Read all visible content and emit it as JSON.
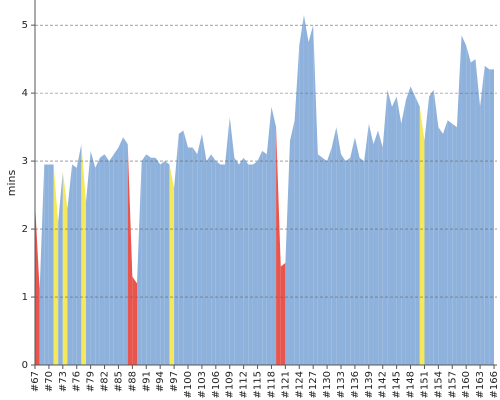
{
  "chart_data": {
    "type": "area",
    "y_label": "mins",
    "ylim": [
      0,
      5.37
    ],
    "yticks": [
      0,
      1,
      2,
      3,
      4,
      5
    ],
    "grid": true,
    "categories": [
      "#67",
      null,
      null,
      "#70",
      null,
      null,
      "#73",
      null,
      null,
      "#76",
      null,
      null,
      "#79",
      null,
      null,
      "#82",
      null,
      null,
      "#85",
      null,
      null,
      "#88",
      null,
      null,
      "#91",
      null,
      null,
      "#94",
      null,
      null,
      "#97",
      null,
      null,
      "#100",
      null,
      null,
      "#103",
      null,
      null,
      "#106",
      null,
      null,
      "#109",
      null,
      null,
      "#112",
      null,
      null,
      "#115",
      null,
      null,
      "#118",
      null,
      null,
      "#121",
      null,
      null,
      "#124",
      null,
      null,
      "#127",
      null,
      null,
      "#130",
      null,
      null,
      "#133",
      null,
      null,
      "#136",
      null,
      null,
      "#139",
      null,
      null,
      "#142",
      null,
      null,
      "#145",
      null,
      null,
      "#148",
      null,
      null,
      "#151",
      null,
      null,
      "#154",
      null,
      null,
      "#157",
      null,
      null,
      "#160",
      null,
      null,
      "#163",
      null,
      null,
      "#166"
    ],
    "values": [
      2.4,
      1.1,
      2.95,
      2.95,
      2.95,
      2.1,
      2.85,
      2.3,
      2.95,
      2.9,
      3.25,
      2.4,
      3.15,
      2.9,
      3.05,
      3.1,
      3.0,
      3.1,
      3.2,
      3.35,
      3.25,
      1.3,
      1.2,
      3.0,
      3.1,
      3.05,
      3.05,
      2.95,
      3.0,
      2.95,
      2.6,
      3.4,
      3.45,
      3.2,
      3.2,
      3.1,
      3.4,
      3.0,
      3.1,
      3.0,
      2.95,
      2.95,
      3.65,
      3.05,
      2.95,
      3.05,
      2.95,
      2.95,
      3.0,
      3.15,
      3.1,
      3.8,
      3.5,
      1.45,
      1.5,
      3.3,
      3.6,
      4.7,
      5.15,
      4.75,
      5.0,
      3.1,
      3.05,
      3.0,
      3.2,
      3.5,
      3.1,
      3.0,
      3.05,
      3.35,
      3.05,
      3.0,
      3.55,
      3.25,
      3.45,
      3.2,
      4.05,
      3.8,
      3.95,
      3.55,
      3.9,
      4.1,
      3.95,
      3.8,
      3.3,
      3.95,
      4.05,
      3.5,
      3.4,
      3.6,
      3.55,
      3.5,
      4.85,
      4.7,
      4.45,
      4.5,
      3.8,
      4.4,
      4.35,
      4.35
    ],
    "point_colors": [
      "#8fb2dc",
      "#e8554e",
      "#8fb2dc",
      "#8fb2dc",
      "#8fb2dc",
      "#f5e85a",
      "#8fb2dc",
      "#f5e85a",
      "#8fb2dc",
      "#8fb2dc",
      "#8fb2dc",
      "#f5e85a",
      "#8fb2dc",
      "#8fb2dc",
      "#8fb2dc",
      "#8fb2dc",
      "#8fb2dc",
      "#8fb2dc",
      "#8fb2dc",
      "#8fb2dc",
      "#8fb2dc",
      "#e8554e",
      "#e8554e",
      "#8fb2dc",
      "#8fb2dc",
      "#8fb2dc",
      "#8fb2dc",
      "#8fb2dc",
      "#8fb2dc",
      "#8fb2dc",
      "#f5e85a",
      "#8fb2dc",
      "#8fb2dc",
      "#8fb2dc",
      "#8fb2dc",
      "#8fb2dc",
      "#8fb2dc",
      "#8fb2dc",
      "#8fb2dc",
      "#8fb2dc",
      "#8fb2dc",
      "#8fb2dc",
      "#8fb2dc",
      "#8fb2dc",
      "#8fb2dc",
      "#8fb2dc",
      "#8fb2dc",
      "#8fb2dc",
      "#8fb2dc",
      "#8fb2dc",
      "#8fb2dc",
      "#8fb2dc",
      "#8fb2dc",
      "#e8554e",
      "#e8554e",
      "#8fb2dc",
      "#8fb2dc",
      "#8fb2dc",
      "#8fb2dc",
      "#8fb2dc",
      "#8fb2dc",
      "#8fb2dc",
      "#8fb2dc",
      "#8fb2dc",
      "#8fb2dc",
      "#8fb2dc",
      "#8fb2dc",
      "#8fb2dc",
      "#8fb2dc",
      "#8fb2dc",
      "#8fb2dc",
      "#8fb2dc",
      "#8fb2dc",
      "#8fb2dc",
      "#8fb2dc",
      "#8fb2dc",
      "#8fb2dc",
      "#8fb2dc",
      "#8fb2dc",
      "#8fb2dc",
      "#8fb2dc",
      "#8fb2dc",
      "#8fb2dc",
      "#8fb2dc",
      "#f5e85a",
      "#8fb2dc",
      "#8fb2dc",
      "#8fb2dc",
      "#8fb2dc",
      "#8fb2dc",
      "#8fb2dc",
      "#8fb2dc",
      "#8fb2dc",
      "#8fb2dc",
      "#8fb2dc",
      "#8fb2dc",
      "#8fb2dc",
      "#8fb2dc",
      "#8fb2dc",
      "#8fb2dc"
    ]
  }
}
